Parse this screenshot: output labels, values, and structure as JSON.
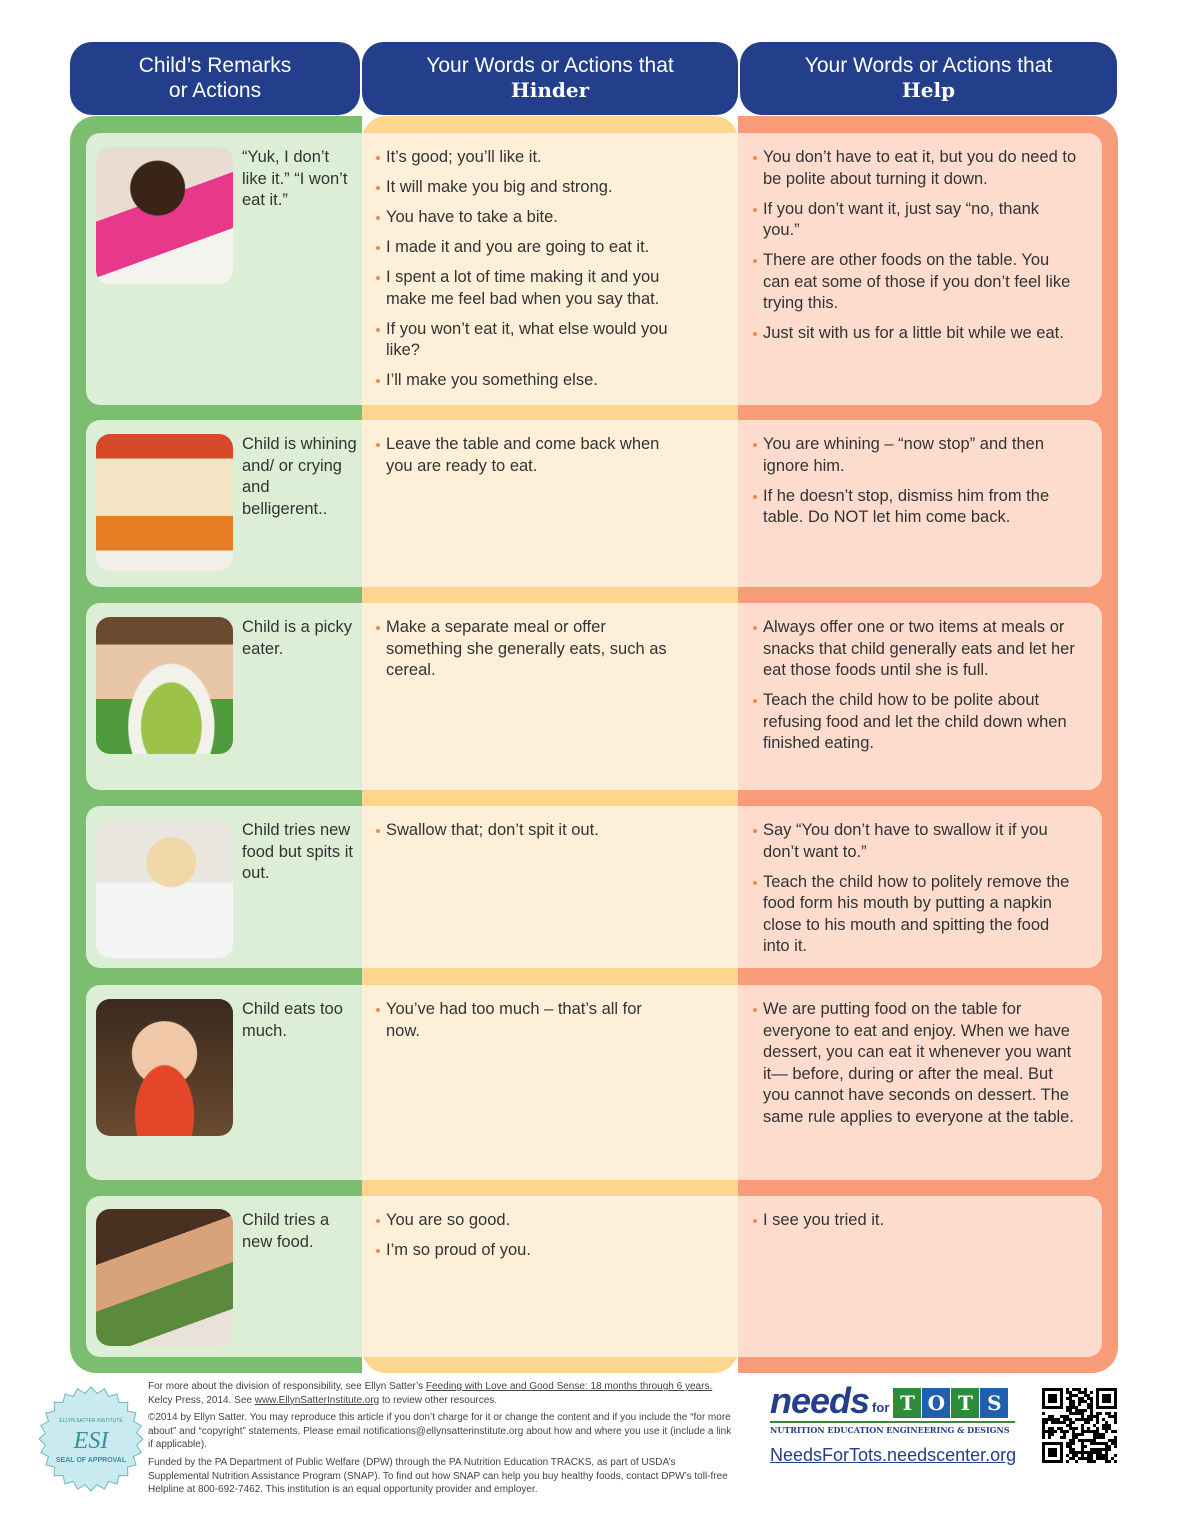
{
  "header": {
    "col1": [
      "Child’s Remarks",
      "or Actions"
    ],
    "col2": {
      "line": "Your Words or Actions that",
      "bold": "Hinder"
    },
    "col3": {
      "line": "Your Words or Actions that",
      "bold": "Help"
    }
  },
  "colors": {
    "header": "#233e8b",
    "green": "#7cbe6f",
    "yellow": "#fcd58e",
    "orange": "#f79b78",
    "bullet": "#f08a4b"
  },
  "rows": [
    {
      "photo": "child-pushing-plate-photo",
      "remark": "“Yuk, I don’t like it.” “I won’t eat it.”",
      "hinder": [
        "It’s good; you’ll like it.",
        "It will make you big and strong.",
        "You have to take a bite.",
        "I made it and you are going to eat it.",
        "I spent a lot of time making it and you make me feel bad when you say that.",
        "If you won’t eat it, what else would you like?",
        "I’ll make you something else."
      ],
      "help": [
        "You don’t have to eat it, but you do need to be polite about turning it down.",
        "If you don’t want it, just say “no, thank you.”",
        "There are other foods on the table. You can eat some of those if you don’t feel like trying this.",
        "Just sit with us for a little bit while we eat."
      ]
    },
    {
      "photo": "crying-boy-at-table-photo",
      "remark": "Child is whining and/ or crying and belligerent..",
      "hinder": [
        "Leave the table and come back when you are ready to eat."
      ],
      "help": [
        "You are whining – “now stop” and then ignore him.",
        "If he doesn’t stop, dismiss him from the table. Do NOT let him come back."
      ]
    },
    {
      "photo": "picky-eater-with-soup-photo",
      "remark": "Child is a picky eater.",
      "hinder": [
        "Make a separate meal or offer something she generally eats, such as cereal."
      ],
      "help": [
        "Always offer one or two items at meals or snacks that child generally eats and let her eat those foods until she is full.",
        "Teach the child how to be polite about refusing food and let the child down when finished eating."
      ]
    },
    {
      "photo": "toddler-spitting-food-photo",
      "remark": "Child tries new food but spits it out.",
      "hinder": [
        "Swallow that; don’t spit it out."
      ],
      "help": [
        "Say “You don’t have to swallow it if you don’t want to.”",
        "Teach the child how to politely remove the food form his mouth by putting a napkin close to his mouth and spitting the food into it."
      ]
    },
    {
      "photo": "boy-eating-spaghetti-photo",
      "remark": "Child eats too much.",
      "hinder": [
        "You’ve had too much – that’s all for now."
      ],
      "help": [
        "We are putting food on the table for everyone to eat and enjoy. When we have dessert, you can eat it whenever you want it— before, during or after the meal. But you cannot have seconds on dessert. The same rule applies to everyone at the table."
      ]
    },
    {
      "photo": "girl-trying-salad-photo",
      "remark": "Child tries a new food.",
      "hinder": [
        "You are so good.",
        "I’m so proud of you."
      ],
      "help": [
        "I see you tried it."
      ]
    }
  ],
  "footer": {
    "p1_pre": "For more about the division of responsibility, see Ellyn Satter’s ",
    "p1_book": "Feeding with Love and Good Sense: 18 months through 6 years.",
    "p1_mid": " Kelcy Press, 2014. See ",
    "p1_link": "www.EllynSatterInstitute.org",
    "p1_post": " to review other resources.",
    "p2": "©2014 by Ellyn Satter. You may reproduce this article if you don’t charge for it or change the content and if you include the “for more about” and “copyright” statements. Please email notifications@ellynsatterinstitute.org about how and where you use it (include a link if applicable).",
    "p3": "Funded by the PA Department of Public Welfare (DPW) through the PA Nutrition Education TRACKS, as part of USDA’s Supplemental Nutrition Assistance Program (SNAP). To find out how SNAP can help you buy healthy foods, contact DPW’s toll-free Helpline at 800-692-7462. This institution is an equal opportunity provider and employer.",
    "seal": {
      "top": "ELLYN SATTER INSTITUTE",
      "mid": "ESI",
      "bottom": "SEAL OF APPROVAL"
    },
    "logo": {
      "needs": "needs",
      "for": "for",
      "tots": [
        "T",
        "O",
        "T",
        "S"
      ],
      "tagline": "NUTRITION EDUCATION ENGINEERING & DESIGNS"
    },
    "url": "NeedsForTots.needscenter.org"
  }
}
